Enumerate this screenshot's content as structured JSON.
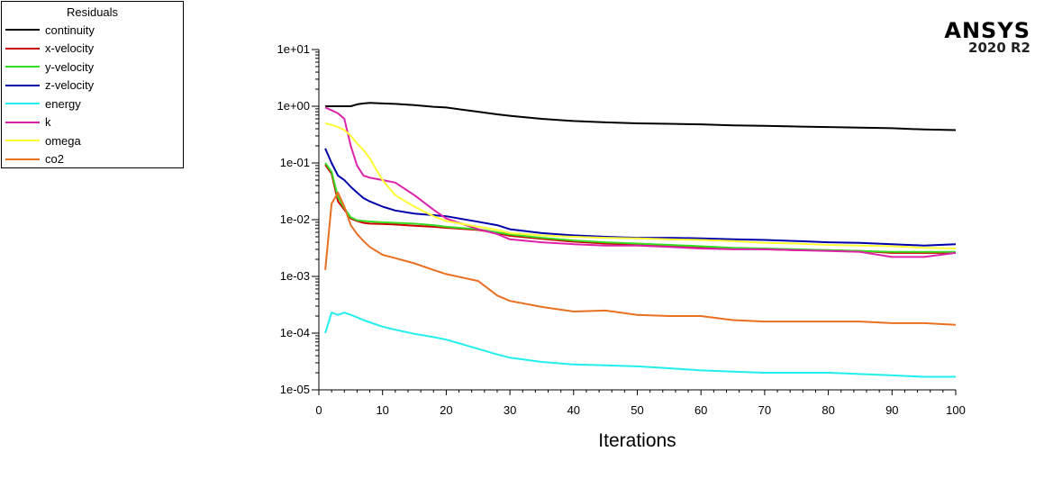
{
  "logo": {
    "brand": "ANSYS",
    "version": "2020 R2"
  },
  "chart_data": {
    "type": "line",
    "title": "",
    "xlabel": "Iterations",
    "ylabel": "",
    "yscale": "log",
    "xlim": [
      0,
      100
    ],
    "ylim": [
      1e-05,
      10
    ],
    "x_ticks": [
      "0",
      "10",
      "20",
      "30",
      "40",
      "50",
      "60",
      "70",
      "80",
      "90",
      "100"
    ],
    "y_ticks": [
      "1e+01",
      "1e+00",
      "1e-01",
      "1e-02",
      "1e-03",
      "1e-04",
      "1e-05"
    ],
    "legend": {
      "title": "Residuals",
      "placement": "top-left outside"
    },
    "x": [
      1,
      2,
      3,
      4,
      5,
      6,
      7,
      8,
      10,
      12,
      15,
      18,
      20,
      25,
      28,
      30,
      35,
      40,
      45,
      50,
      55,
      60,
      65,
      70,
      75,
      80,
      85,
      90,
      95,
      100
    ],
    "series": [
      {
        "name": "continuity",
        "color": "#000000",
        "values": [
          1.0,
          1.0,
          1.0,
          1.0,
          1.0,
          1.08,
          1.12,
          1.15,
          1.12,
          1.1,
          1.05,
          0.98,
          0.95,
          0.8,
          0.72,
          0.68,
          0.6,
          0.55,
          0.52,
          0.5,
          0.49,
          0.48,
          0.46,
          0.45,
          0.44,
          0.43,
          0.42,
          0.41,
          0.39,
          0.38
        ]
      },
      {
        "name": "x-velocity",
        "color": "#cc0000",
        "values": [
          0.093,
          0.065,
          0.021,
          0.015,
          0.0105,
          0.0095,
          0.0088,
          0.0085,
          0.0084,
          0.0082,
          0.0078,
          0.0075,
          0.0072,
          0.0066,
          0.0058,
          0.0052,
          0.0046,
          0.0041,
          0.0038,
          0.0036,
          0.0034,
          0.0032,
          0.0031,
          0.003,
          0.0029,
          0.0029,
          0.0028,
          0.0026,
          0.0026,
          0.0026
        ]
      },
      {
        "name": "y-velocity",
        "color": "#33dd22",
        "values": [
          0.1,
          0.07,
          0.025,
          0.016,
          0.011,
          0.0098,
          0.0095,
          0.0093,
          0.009,
          0.0088,
          0.0085,
          0.008,
          0.0075,
          0.0068,
          0.006,
          0.0055,
          0.0048,
          0.0043,
          0.004,
          0.0038,
          0.0036,
          0.0034,
          0.0032,
          0.0031,
          0.003,
          0.0029,
          0.0028,
          0.0027,
          0.0027,
          0.0027
        ]
      },
      {
        "name": "z-velocity",
        "color": "#0000aa",
        "values": [
          0.18,
          0.1,
          0.06,
          0.05,
          0.038,
          0.03,
          0.024,
          0.021,
          0.017,
          0.0145,
          0.0128,
          0.012,
          0.0115,
          0.0092,
          0.008,
          0.0068,
          0.0058,
          0.0053,
          0.005,
          0.0048,
          0.0048,
          0.0047,
          0.0045,
          0.0044,
          0.0042,
          0.004,
          0.0039,
          0.0037,
          0.0035,
          0.0037
        ]
      },
      {
        "name": "energy",
        "color": "#22eeee",
        "values": [
          0.0001,
          0.00023,
          0.00021,
          0.00023,
          0.00021,
          0.00019,
          0.00017,
          0.000155,
          0.00013,
          0.000115,
          9.7e-05,
          8.5e-05,
          7.7e-05,
          5.3e-05,
          4.2e-05,
          3.7e-05,
          3.1e-05,
          2.8e-05,
          2.7e-05,
          2.6e-05,
          2.4e-05,
          2.2e-05,
          2.1e-05,
          2e-05,
          2e-05,
          2e-05,
          1.9e-05,
          1.8e-05,
          1.7e-05,
          1.7e-05
        ]
      },
      {
        "name": "k",
        "color": "#dd22aa",
        "values": [
          0.95,
          0.85,
          0.75,
          0.6,
          0.2,
          0.09,
          0.06,
          0.055,
          0.05,
          0.045,
          0.027,
          0.015,
          0.0105,
          0.0068,
          0.0056,
          0.0045,
          0.004,
          0.0037,
          0.0035,
          0.0035,
          0.0033,
          0.0031,
          0.003,
          0.003,
          0.0029,
          0.0028,
          0.0027,
          0.0022,
          0.0022,
          0.0026
        ]
      },
      {
        "name": "omega",
        "color": "#ffff33",
        "values": [
          0.5,
          0.47,
          0.43,
          0.38,
          0.3,
          0.22,
          0.17,
          0.12,
          0.05,
          0.027,
          0.017,
          0.0115,
          0.0095,
          0.0075,
          0.0066,
          0.0058,
          0.0053,
          0.005,
          0.0048,
          0.0047,
          0.0045,
          0.0044,
          0.0042,
          0.0039,
          0.0038,
          0.0036,
          0.0035,
          0.0034,
          0.0032,
          0.0031
        ]
      },
      {
        "name": "co2",
        "color": "#e87020",
        "values": [
          0.0013,
          0.019,
          0.03,
          0.017,
          0.008,
          0.0056,
          0.0042,
          0.0033,
          0.0024,
          0.0021,
          0.0017,
          0.0013,
          0.0011,
          0.00083,
          0.00046,
          0.00037,
          0.00029,
          0.00024,
          0.00025,
          0.00021,
          0.0002,
          0.0002,
          0.00017,
          0.00016,
          0.00016,
          0.00016,
          0.00016,
          0.00015,
          0.00015,
          0.00014
        ]
      }
    ]
  }
}
